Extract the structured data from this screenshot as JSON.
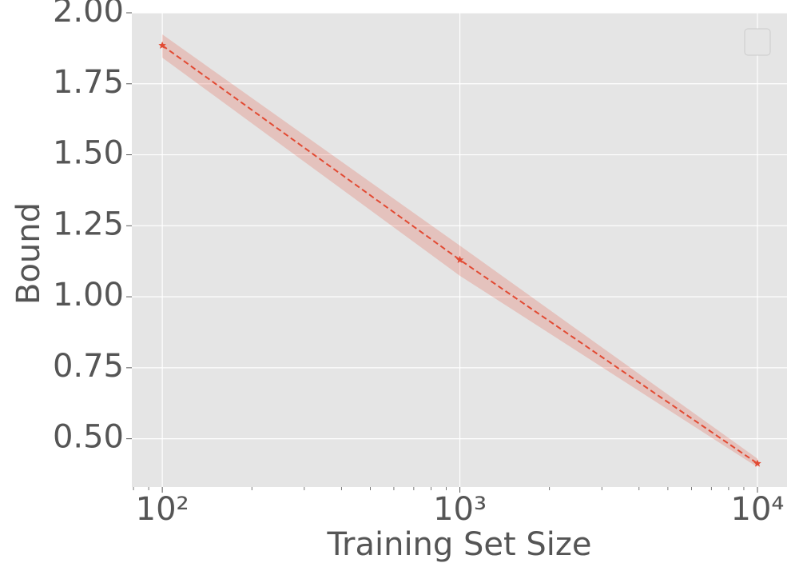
{
  "chart_data": {
    "type": "line",
    "xlabel": "Training Set Size",
    "ylabel": "Bound",
    "x": [
      100,
      1000,
      10000
    ],
    "series": [
      {
        "color": "#e24a33",
        "values": [
          1.885,
          1.13,
          0.413
        ],
        "lower": [
          1.842,
          1.074,
          0.4
        ],
        "upper": [
          1.924,
          1.18,
          0.43
        ]
      }
    ],
    "xscale": "log",
    "xlim": [
      79,
      12570
    ],
    "ylim": [
      0.33,
      2.0
    ],
    "xticks": [
      {
        "value": 100,
        "label": "10²"
      },
      {
        "value": 1000,
        "label": "10³"
      },
      {
        "value": 10000,
        "label": "10⁴"
      }
    ],
    "xminorticks": [
      80,
      90,
      200,
      300,
      400,
      500,
      600,
      700,
      800,
      900,
      2000,
      3000,
      4000,
      5000,
      6000,
      7000,
      8000,
      9000
    ],
    "yticks": [
      {
        "value": 0.5,
        "label": "0.50"
      },
      {
        "value": 0.75,
        "label": "0.75"
      },
      {
        "value": 1.0,
        "label": "1.00"
      },
      {
        "value": 1.25,
        "label": "1.25"
      },
      {
        "value": 1.5,
        "label": "1.50"
      },
      {
        "value": 1.75,
        "label": "1.75"
      },
      {
        "value": 2.0,
        "label": "2.00"
      }
    ],
    "grid": true
  }
}
